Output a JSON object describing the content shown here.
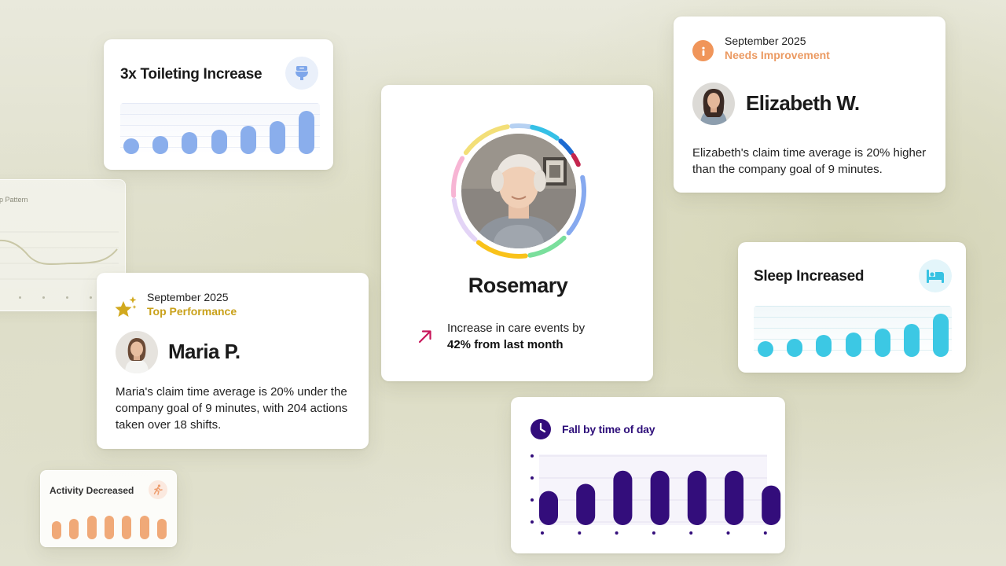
{
  "toileting_card": {
    "title": "3x Toileting Increase",
    "icon": "toilet-icon",
    "bar_levels": [
      0.25,
      0.32,
      0.42,
      0.48,
      0.6,
      0.72,
      1.0
    ],
    "bar_color": "#8aaeec"
  },
  "sleep_pattern_card": {
    "title": "p Pattern"
  },
  "rosemary_card": {
    "name": "Rosemary",
    "trend_icon": "arrow-up-right-icon",
    "trend_line1": "Increase in care events by",
    "trend_line2": "42% from last month",
    "ring_colors": [
      "#b6d1f2",
      "#35c0e6",
      "#1e6bd1",
      "#c4264e",
      "#86a9ef",
      "#7adf9c",
      "#f9c21a",
      "#e3d4f6",
      "#f7b5d4",
      "#ffd9a8",
      "#f3df78"
    ]
  },
  "elizabeth_card": {
    "icon": "info-icon",
    "date": "September 2025",
    "status": "Needs Improvement",
    "status_color": "#eb9a62",
    "name": "Elizabeth W.",
    "description": "Elizabeth's claim time average is 20% higher than the company goal of 9 minutes."
  },
  "sleep_card": {
    "title": "Sleep Increased",
    "icon": "bed-icon",
    "bar_levels": [
      0.25,
      0.32,
      0.42,
      0.48,
      0.6,
      0.72,
      1.0
    ],
    "bar_color": "#3cc8e4"
  },
  "maria_card": {
    "icon": "star-sparkle-icon",
    "date": "September 2025",
    "status": "Top Performance",
    "status_color": "#c9a11a",
    "name": "Maria P.",
    "description": "Maria's claim time average is 20% under the company goal of 9 minutes, with 204 actions taken over 18 shifts."
  },
  "activity_card": {
    "title": "Activity Decreased",
    "icon": "running-person-icon",
    "bar_levels": [
      0.55,
      0.7,
      0.9,
      0.9,
      0.9,
      0.9,
      0.7
    ],
    "bar_color": "#f0a978"
  },
  "fall_card": {
    "title": "Fall by time of day",
    "icon": "clock-icon",
    "bar_color": "#330d7b",
    "bar_levels": [
      0.62,
      0.75,
      0.99,
      0.99,
      0.99,
      0.99,
      0.72
    ]
  }
}
